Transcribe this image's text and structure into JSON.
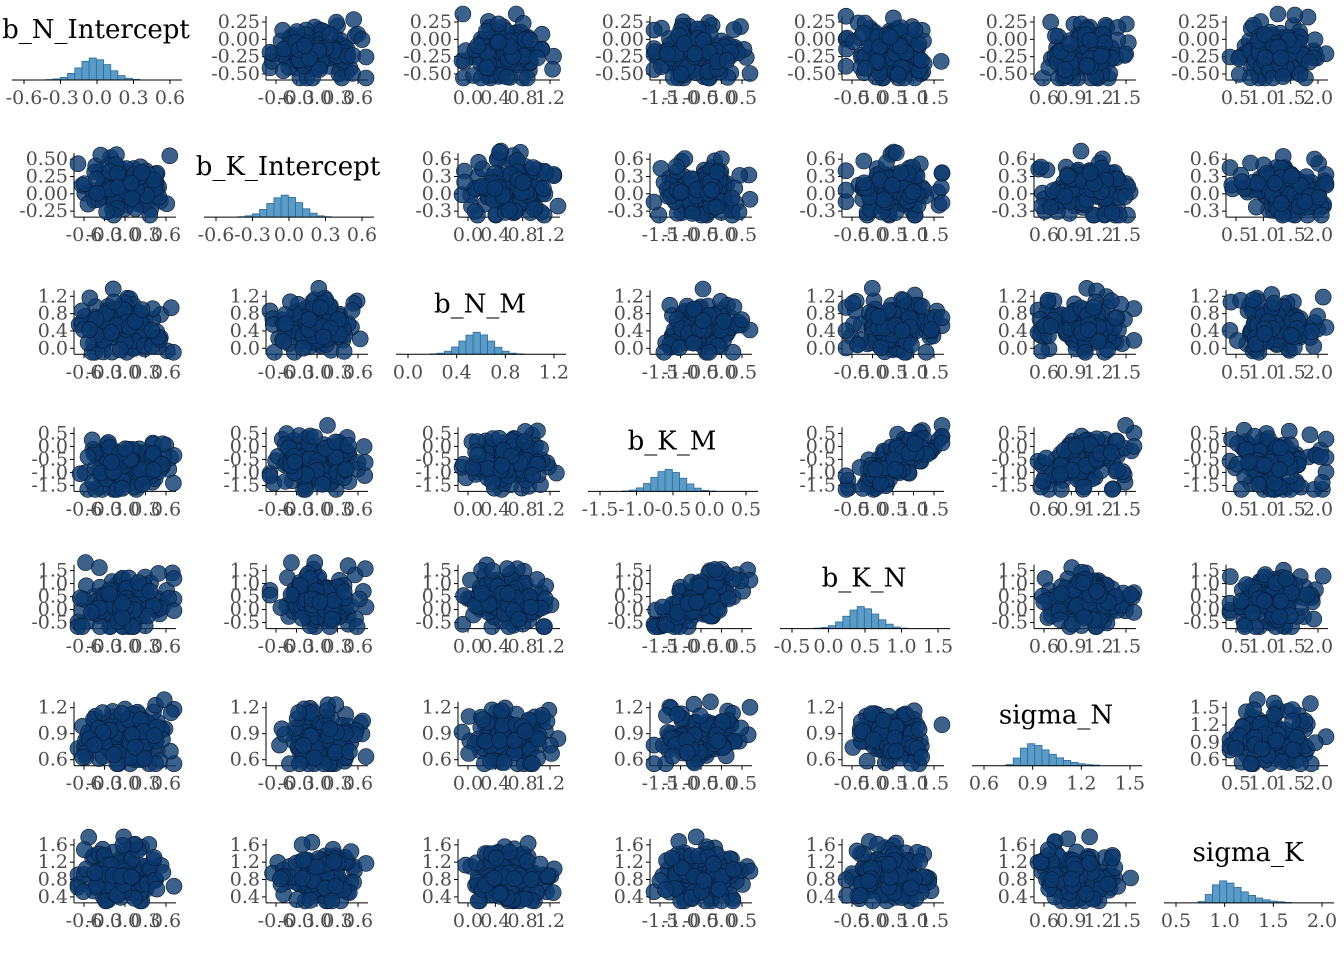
{
  "chart_data": {
    "type": "scatter",
    "layout": "pairs-matrix",
    "diagonal": "histogram",
    "off_diagonal": "scatter",
    "colors": {
      "points_fill": "#0b3a6e",
      "points_stroke": "#051a33",
      "hist_fill": "#5b9bc8",
      "hist_stroke": "#2c6a9a",
      "axis": "#000000",
      "tick_label": "#4d4d4d",
      "title": "#000000"
    },
    "variables": [
      "b_N_Intercept",
      "b_K_Intercept",
      "b_N_M",
      "b_K_M",
      "b_K_N",
      "sigma_N",
      "sigma_K"
    ],
    "x_ticks": [
      [
        "-0.6",
        "-0.3",
        "0.0",
        "0.3",
        "0.6"
      ],
      [
        "-0.6",
        "-0.3",
        "0.0",
        "0.3",
        "0.6"
      ],
      [
        "0.0",
        "0.4",
        "0.8",
        "1.2"
      ],
      [
        "-1.5",
        "-1.0",
        "-0.5",
        "0.0",
        "0.5"
      ],
      [
        "-0.5",
        "0.0",
        "0.5",
        "1.0",
        "1.5"
      ],
      [
        "0.6",
        "0.9",
        "1.2",
        "1.5"
      ],
      [
        "0.5",
        "1.0",
        "1.5",
        "2.0"
      ]
    ],
    "y_ticks": [
      [
        "0.25",
        "0.00",
        "-0.25",
        "-0.50"
      ],
      [
        "0.50",
        "0.25",
        "0.00",
        "-0.25"
      ],
      [
        "1.2",
        "0.8",
        "0.4",
        "0.0"
      ],
      [
        "0.5",
        "0.0",
        "-0.5",
        "-1.0",
        "-1.5"
      ],
      [
        "1.5",
        "1.0",
        "0.5",
        "0.0",
        "-0.5"
      ],
      [
        "1.2",
        "0.9",
        "0.6"
      ],
      [
        "1.6",
        "1.2",
        "0.8",
        "0.4"
      ]
    ],
    "y_ticks_alt": {
      "1": [
        "0.6",
        "0.3",
        "0.0",
        "-0.3"
      ],
      "5": [
        "1.5",
        "1.2",
        "0.9",
        "0.6"
      ]
    },
    "histogram_densities": [
      [
        0.02,
        0.05,
        0.12,
        0.3,
        0.55,
        0.85,
        1.0,
        0.92,
        0.7,
        0.42,
        0.2,
        0.08,
        0.03
      ],
      [
        0.02,
        0.06,
        0.15,
        0.35,
        0.62,
        0.88,
        1.0,
        0.9,
        0.66,
        0.38,
        0.18,
        0.06,
        0.02
      ],
      [
        0.02,
        0.05,
        0.14,
        0.33,
        0.6,
        0.87,
        1.0,
        0.88,
        0.6,
        0.32,
        0.14,
        0.05,
        0.02
      ],
      [
        0.02,
        0.06,
        0.16,
        0.36,
        0.64,
        0.9,
        1.0,
        0.86,
        0.6,
        0.34,
        0.15,
        0.05,
        0.02
      ],
      [
        0.02,
        0.05,
        0.13,
        0.3,
        0.56,
        0.84,
        1.0,
        0.9,
        0.66,
        0.4,
        0.2,
        0.07,
        0.02
      ],
      [
        0.05,
        0.35,
        0.8,
        1.0,
        0.92,
        0.72,
        0.52,
        0.36,
        0.24,
        0.15,
        0.09,
        0.05,
        0.03
      ],
      [
        0.06,
        0.38,
        0.82,
        1.0,
        0.9,
        0.7,
        0.5,
        0.34,
        0.22,
        0.14,
        0.08,
        0.05,
        0.02
      ]
    ]
  }
}
